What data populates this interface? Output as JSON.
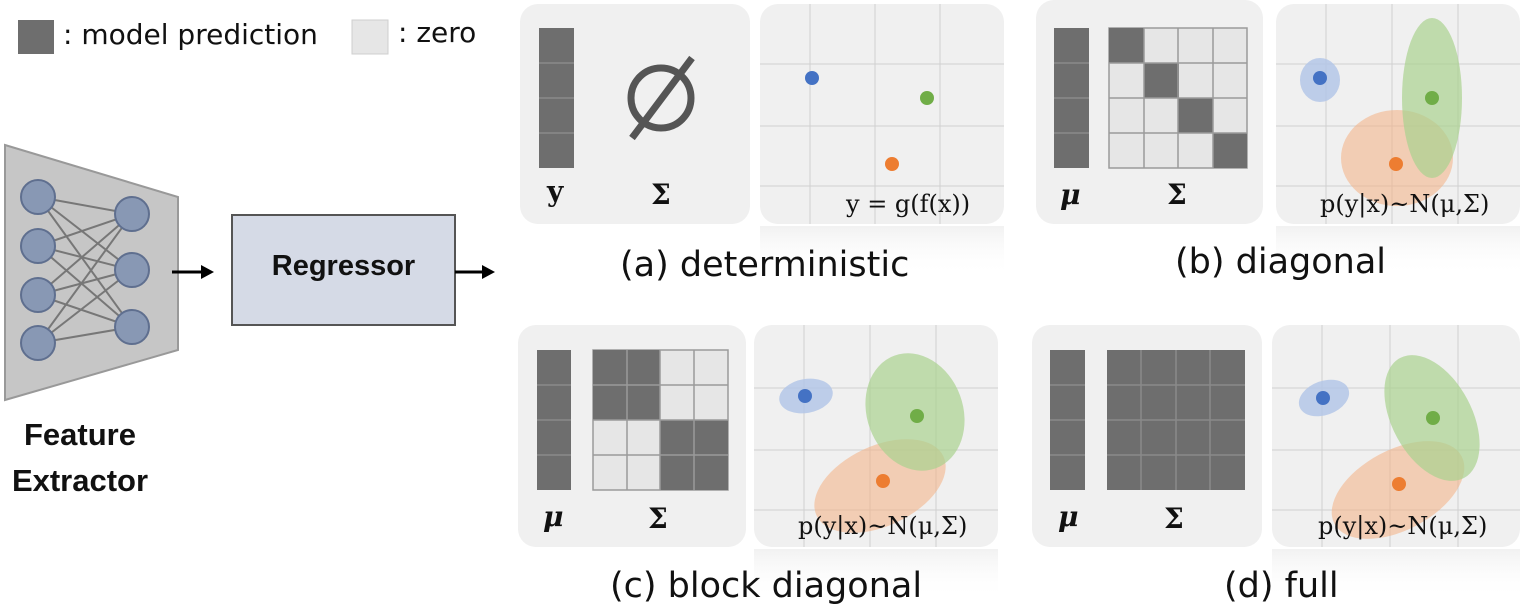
{
  "legend": {
    "dark_label": ": model prediction",
    "light_label": ": zero"
  },
  "pipeline": {
    "feature_extractor_line1": "Feature",
    "feature_extractor_line2": "Extractor",
    "regressor_label": "Regressor"
  },
  "panels": {
    "a": {
      "caption": "(a) deterministic",
      "vector_label": "y",
      "matrix_label": "Σ",
      "formula": "y = g(f(x))"
    },
    "b": {
      "caption": "(b) diagonal",
      "vector_label": "μ",
      "matrix_label": "Σ",
      "formula": "p(y|x)~N(μ,Σ)"
    },
    "c": {
      "caption": "(c) block diagonal",
      "vector_label": "μ",
      "matrix_label": "Σ",
      "formula": "p(y|x)~N(μ,Σ)"
    },
    "d": {
      "caption": "(d) full",
      "vector_label": "μ",
      "matrix_label": "Σ",
      "formula": "p(y|x)~N(μ,Σ)"
    }
  },
  "colors": {
    "model_prediction": "#6e6e6e",
    "zero": "#e6e6e6",
    "node_fill": "#8898b4",
    "regressor_fill": "#d5dae6",
    "blue_point": "#4472c4",
    "green_point": "#70ad47",
    "orange_point": "#ed7d31"
  }
}
